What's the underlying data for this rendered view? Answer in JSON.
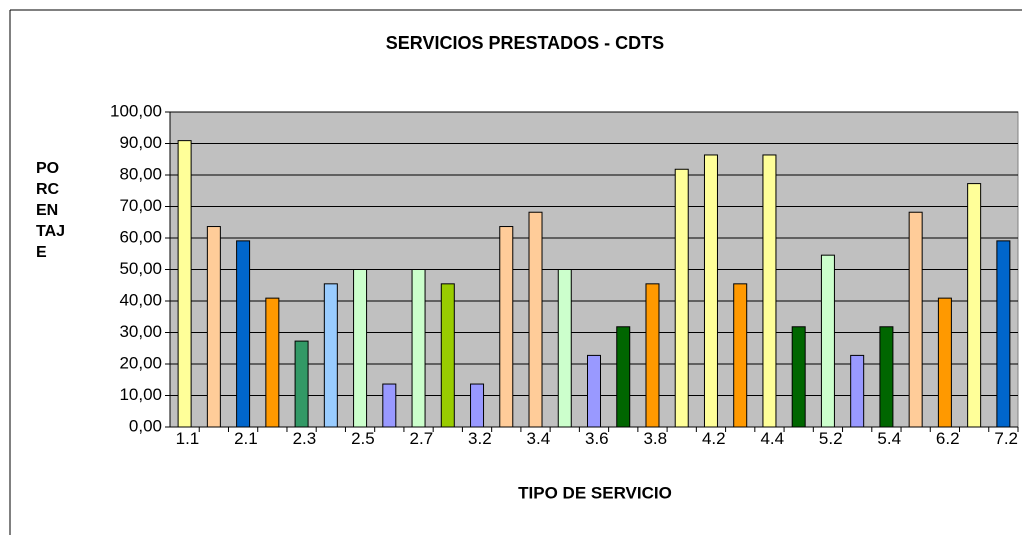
{
  "chart_data": {
    "type": "bar",
    "title": "SERVICIOS PRESTADOS - CDTS",
    "xlabel": "TIPO DE SERVICIO",
    "ylabel": "PORCENTAJE",
    "categories": [
      "1.1",
      null,
      "2.1",
      null,
      "2.3",
      null,
      "2.5",
      null,
      "2.7",
      null,
      "3.2",
      null,
      "3.4",
      null,
      "3.6",
      null,
      "3.8",
      null,
      "4.2",
      null,
      "4.4",
      null,
      "5.2",
      null,
      "5.4",
      null,
      "6.2",
      null,
      "7.2"
    ],
    "values": [
      90.91,
      63.64,
      59.09,
      40.91,
      27.27,
      45.45,
      50,
      13.64,
      50,
      45.45,
      13.64,
      63.64,
      68.18,
      50,
      22.73,
      31.82,
      45.45,
      81.82,
      86.36,
      45.45,
      86.36,
      31.82,
      54.55,
      22.73,
      31.82,
      68.18,
      40.91,
      77.27,
      59.09
    ],
    "colors": [
      "#ffff99",
      "#ffcc99",
      "#0066cc",
      "#ff9900",
      "#339966",
      "#99ccff",
      "#ccffcc",
      "#9999ff",
      "#ccffcc",
      "#99cc00",
      "#9999ff",
      "#ffcc99",
      "#ffcc99",
      "#ccffcc",
      "#9999ff",
      "#006600",
      "#ff9900",
      "#ffff99",
      "#ffff99",
      "#ff9900",
      "#ffff99",
      "#006600",
      "#ccffcc",
      "#9999ff",
      "#006600",
      "#ffcc99",
      "#ff9900",
      "#ffff99",
      "#0066cc"
    ],
    "ylim": [
      0,
      100
    ],
    "yticks": [
      {
        "value": 0,
        "label": "0,00"
      },
      {
        "value": 10,
        "label": "10,00"
      },
      {
        "value": 20,
        "label": "20,00"
      },
      {
        "value": 30,
        "label": "30,00"
      },
      {
        "value": 40,
        "label": "40,00"
      },
      {
        "value": 50,
        "label": "50,00"
      },
      {
        "value": 60,
        "label": "60,00"
      },
      {
        "value": 70,
        "label": "70,00"
      },
      {
        "value": 80,
        "label": "80,00"
      },
      {
        "value": 90,
        "label": "90,00"
      },
      {
        "value": 100,
        "label": "100,00"
      }
    ],
    "grid": true
  }
}
